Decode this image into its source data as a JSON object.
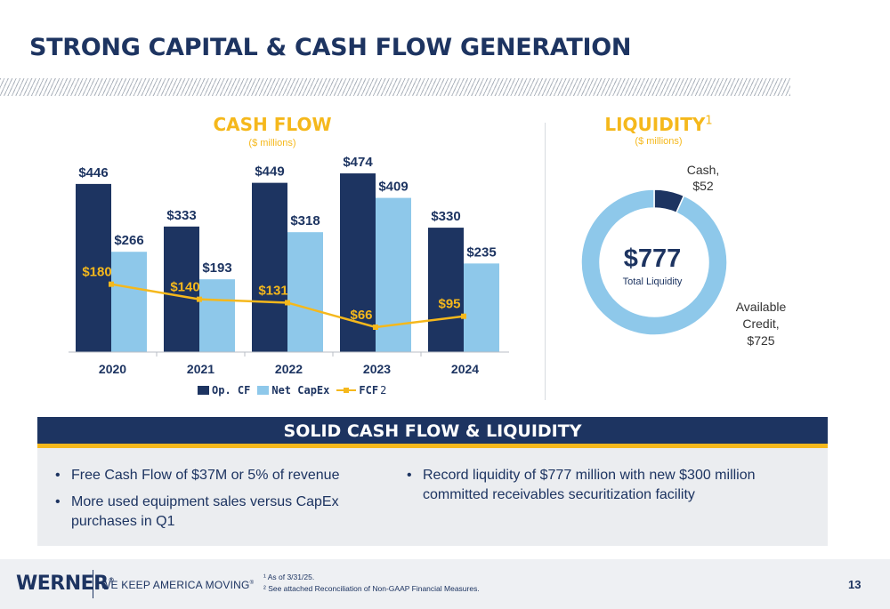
{
  "title": "STRONG CAPITAL & CASH FLOW GENERATION",
  "cash_flow": {
    "title": "CASH FLOW",
    "subtitle": "($ millions)"
  },
  "liquidity": {
    "title": "LIQUIDITY",
    "title_footnote": "1",
    "subtitle": "($ millions)",
    "total_value": "$777",
    "total_label": "Total Liquidity",
    "cash_label_line1": "Cash,",
    "cash_label_line2": "$52",
    "credit_label_line1": "Available",
    "credit_label_line2": "Credit,",
    "credit_label_line3": "$725"
  },
  "legend": {
    "op_cf": "Op. CF",
    "net_capex": "Net CapEx",
    "fcf": "FCF",
    "fcf_footnote": "2"
  },
  "band_title": "SOLID CASH FLOW & LIQUIDITY",
  "bullets_left": [
    "Free Cash Flow of $37M or 5% of revenue",
    "More used equipment sales versus CapEx purchases in Q1"
  ],
  "bullets_right": [
    "Record liquidity of $777 million with new $300 million committed receivables securitization facility"
  ],
  "footer": {
    "logo": "WERNER",
    "logo_mark": "®",
    "tagline": "WE KEEP AMERICA MOVING",
    "tagline_mark": "®",
    "footnote_1": "¹ As of 3/31/25.",
    "footnote_2": "² See attached Reconciliation of Non-GAAP Financial Measures.",
    "page_number": "13"
  },
  "colors": {
    "navy": "#1d3461",
    "light_blue": "#8ec8ea",
    "gold": "#f5b81c"
  },
  "chart_data": [
    {
      "type": "bar",
      "title": "CASH FLOW",
      "subtitle": "($ millions)",
      "categories": [
        "2020",
        "2021",
        "2022",
        "2023",
        "2024"
      ],
      "series": [
        {
          "name": "Op. CF",
          "values": [
            446,
            333,
            449,
            474,
            330
          ],
          "labels": [
            "$446",
            "$333",
            "$449",
            "$474",
            "$330"
          ],
          "color": "#1d3461"
        },
        {
          "name": "Net CapEx",
          "values": [
            266,
            193,
            318,
            409,
            235
          ],
          "labels": [
            "$266",
            "$193",
            "$318",
            "$409",
            "$235"
          ],
          "color": "#8ec8ea"
        },
        {
          "name": "FCF",
          "type": "line",
          "values": [
            180,
            140,
            131,
            66,
            95
          ],
          "labels": [
            "$180",
            "$140",
            "$131",
            "$66",
            "$95"
          ],
          "color": "#f5b81c"
        }
      ],
      "ylim": [
        0,
        500
      ],
      "legend": "bottom"
    },
    {
      "type": "pie",
      "title": "LIQUIDITY",
      "subtitle": "($ millions)",
      "donut": true,
      "total": 777,
      "slices": [
        {
          "label": "Cash",
          "value": 52,
          "color": "#1d3461"
        },
        {
          "label": "Available Credit",
          "value": 725,
          "color": "#8ec8ea"
        }
      ]
    }
  ]
}
